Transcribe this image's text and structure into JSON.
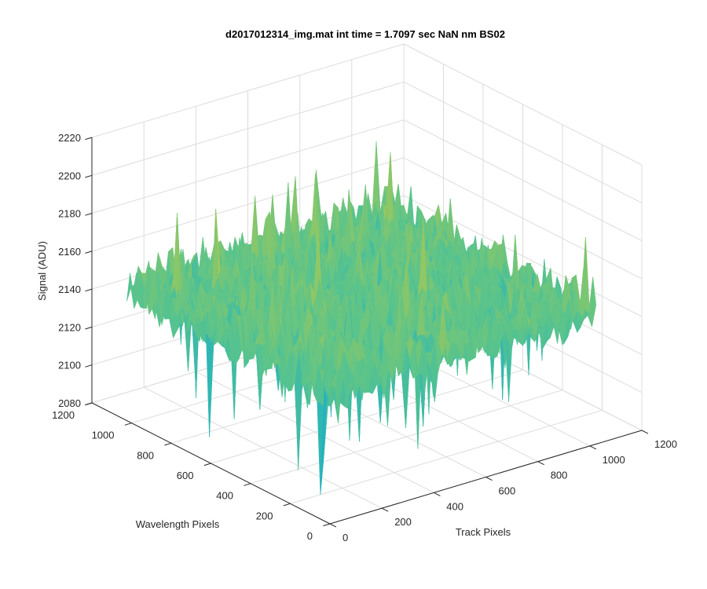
{
  "chart_data": {
    "type": "surface",
    "title": "d2017012314_img.mat int time = 1.7097 sec  NaN nm BS02",
    "xlabel": "Track Pixels",
    "ylabel": "Wavelength Pixels",
    "zlabel": "Signal (ADU)",
    "xlim": [
      0,
      1200
    ],
    "ylim": [
      0,
      1200
    ],
    "zlim": [
      2080,
      2220
    ],
    "x_ticks": [
      "0",
      "200",
      "400",
      "600",
      "800",
      "1000",
      "1200"
    ],
    "y_ticks": [
      "0",
      "200",
      "400",
      "600",
      "800",
      "1000",
      "1200"
    ],
    "z_ticks": [
      "2080",
      "2100",
      "2120",
      "2140",
      "2160",
      "2180",
      "2200",
      "2220"
    ],
    "grid": true,
    "surface": {
      "x_extent": [
        0,
        1024
      ],
      "y_extent": [
        0,
        1024
      ],
      "mean_signal": 2150,
      "typical_range": [
        2100,
        2200
      ],
      "min_signal": 2080,
      "max_signal": 2215,
      "colormap": [
        "#1a8fd6",
        "#21b3c0",
        "#5cc48a",
        "#b5c94a",
        "#e6c23a"
      ]
    }
  }
}
